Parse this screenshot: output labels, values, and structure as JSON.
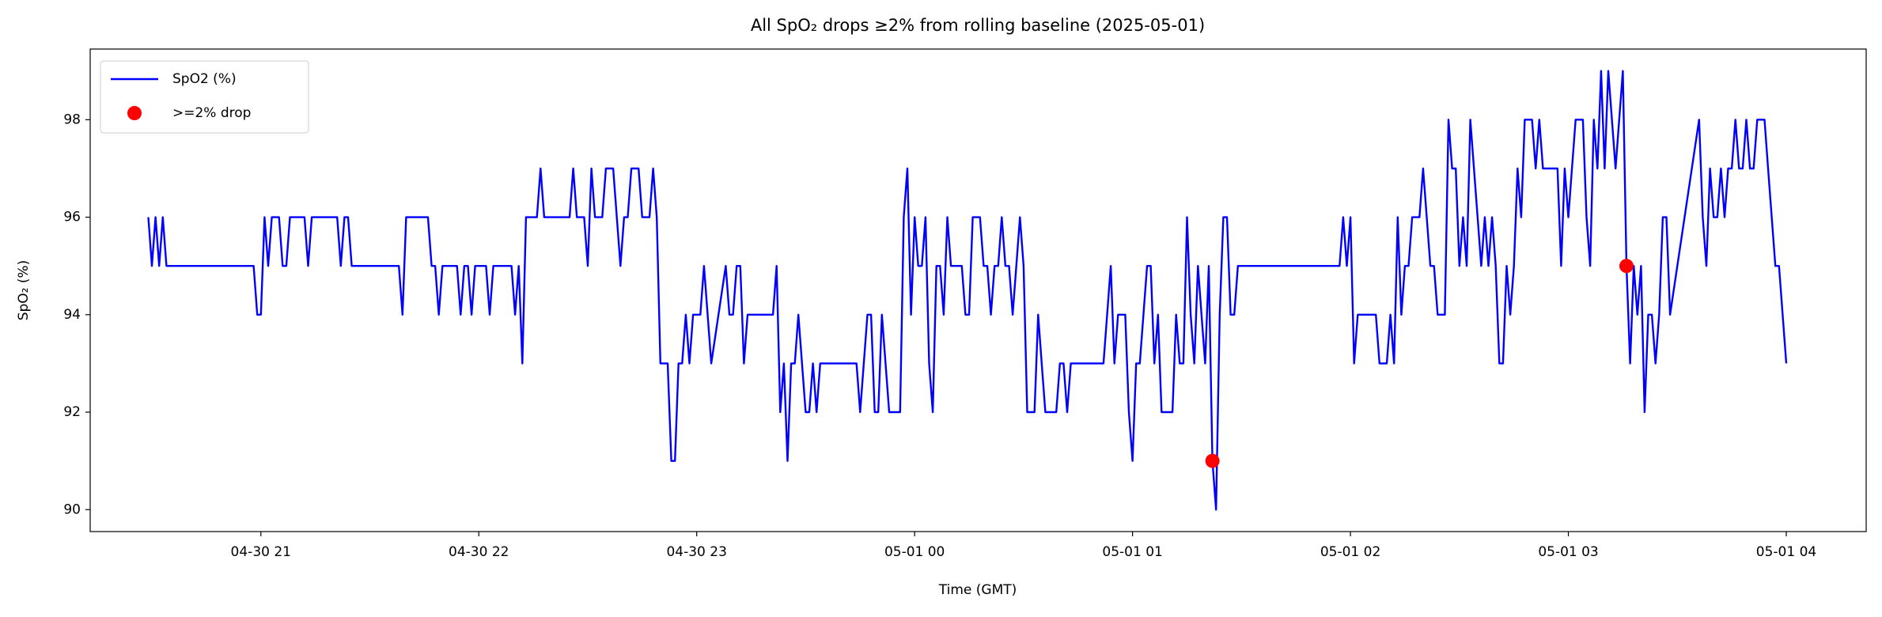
{
  "chart_data": {
    "type": "line",
    "title": "All SpO₂ drops ≥2% from rolling baseline (2025-05-01)",
    "x_label": "Time (GMT)",
    "y_label": "SpO₂ (%)",
    "xlim": [
      "04-30 20:13",
      "05-01 04:22"
    ],
    "xticks": [
      {
        "value": "04-30 21:00",
        "label": "04-30 21"
      },
      {
        "value": "04-30 22:00",
        "label": "04-30 22"
      },
      {
        "value": "04-30 23:00",
        "label": "04-30 23"
      },
      {
        "value": "05-01 00:00",
        "label": "05-01 00"
      },
      {
        "value": "05-01 01:00",
        "label": "05-01 01"
      },
      {
        "value": "05-01 02:00",
        "label": "05-01 02"
      },
      {
        "value": "05-01 03:00",
        "label": "05-01 03"
      },
      {
        "value": "05-01 04:00",
        "label": "05-01 04"
      }
    ],
    "ylim": [
      89.55,
      99.45
    ],
    "yticks": [
      90,
      92,
      94,
      96,
      98
    ],
    "grid": false,
    "legend": "upper left",
    "series": [
      {
        "name": "SpO2 (%)",
        "type": "line",
        "color": "#0000ff",
        "x": [
          "04-30 20:29",
          "04-30 20:30",
          "04-30 20:31",
          "04-30 20:32",
          "04-30 20:33",
          "04-30 20:34",
          "04-30 20:58",
          "04-30 20:59",
          "04-30 21:00",
          "04-30 21:01",
          "04-30 21:02",
          "04-30 21:03",
          "04-30 21:05",
          "04-30 21:06",
          "04-30 21:07",
          "04-30 21:08",
          "04-30 21:12",
          "04-30 21:13",
          "04-30 21:14",
          "04-30 21:21",
          "04-30 21:22",
          "04-30 21:23",
          "04-30 21:24",
          "04-30 21:25",
          "04-30 21:38",
          "04-30 21:39",
          "04-30 21:40",
          "04-30 21:46",
          "04-30 21:47",
          "04-30 21:48",
          "04-30 21:49",
          "04-30 21:50",
          "04-30 21:54",
          "04-30 21:55",
          "04-30 21:56",
          "04-30 21:57",
          "04-30 21:58",
          "04-30 21:59",
          "04-30 22:02",
          "04-30 22:03",
          "04-30 22:04",
          "04-30 22:09",
          "04-30 22:10",
          "04-30 22:11",
          "04-30 22:12",
          "04-30 22:13",
          "04-30 22:16",
          "04-30 22:17",
          "04-30 22:18",
          "04-30 22:25",
          "04-30 22:26",
          "04-30 22:27",
          "04-30 22:29",
          "04-30 22:30",
          "04-30 22:31",
          "04-30 22:32",
          "04-30 22:34",
          "04-30 22:35",
          "04-30 22:37",
          "04-30 22:38",
          "04-30 22:39",
          "04-30 22:40",
          "04-30 22:41",
          "04-30 22:42",
          "04-30 22:44",
          "04-30 22:45",
          "04-30 22:47",
          "04-30 22:48",
          "04-30 22:49",
          "04-30 22:50",
          "04-30 22:52",
          "04-30 22:53",
          "04-30 22:54",
          "04-30 22:55",
          "04-30 22:56",
          "04-30 22:57",
          "04-30 22:58",
          "04-30 22:59",
          "04-30 23:01",
          "04-30 23:02",
          "04-30 23:03",
          "04-30 23:04",
          "04-30 23:06",
          "04-30 23:08",
          "04-30 23:09",
          "04-30 23:10",
          "04-30 23:11",
          "04-30 23:12",
          "04-30 23:13",
          "04-30 23:14",
          "04-30 23:21",
          "04-30 23:22",
          "04-30 23:23",
          "04-30 23:24",
          "04-30 23:25",
          "04-30 23:26",
          "04-30 23:27",
          "04-30 23:28",
          "04-30 23:29",
          "04-30 23:30",
          "04-30 23:31",
          "04-30 23:32",
          "04-30 23:33",
          "04-30 23:34",
          "04-30 23:44",
          "04-30 23:45",
          "04-30 23:46",
          "04-30 23:47",
          "04-30 23:48",
          "04-30 23:49",
          "04-30 23:50",
          "04-30 23:51",
          "04-30 23:52",
          "04-30 23:53",
          "04-30 23:56",
          "04-30 23:57",
          "04-30 23:58",
          "04-30 23:59",
          "05-01 00:00",
          "05-01 00:01",
          "05-01 00:02",
          "05-01 00:03",
          "05-01 00:04",
          "05-01 00:05",
          "05-01 00:06",
          "05-01 00:07",
          "05-01 00:08",
          "05-01 00:09",
          "05-01 00:10",
          "05-01 00:13",
          "05-01 00:14",
          "05-01 00:15",
          "05-01 00:16",
          "05-01 00:18",
          "05-01 00:19",
          "05-01 00:20",
          "05-01 00:21",
          "05-01 00:22",
          "05-01 00:23",
          "05-01 00:24",
          "05-01 00:25",
          "05-01 00:26",
          "05-01 00:27",
          "05-01 00:28",
          "05-01 00:29",
          "05-01 00:30",
          "05-01 00:31",
          "05-01 00:33",
          "05-01 00:34",
          "05-01 00:35",
          "05-01 00:36",
          "05-01 00:39",
          "05-01 00:40",
          "05-01 00:41",
          "05-01 00:42",
          "05-01 00:43",
          "05-01 00:52",
          "05-01 00:53",
          "05-01 00:54",
          "05-01 00:55",
          "05-01 00:56",
          "05-01 00:58",
          "05-01 00:59",
          "05-01 01:00",
          "05-01 01:01",
          "05-01 01:02",
          "05-01 01:03",
          "05-01 01:04",
          "05-01 01:05",
          "05-01 01:06",
          "05-01 01:07",
          "05-01 01:08",
          "05-01 01:11",
          "05-01 01:12",
          "05-01 01:13",
          "05-01 01:14",
          "05-01 01:15",
          "05-01 01:16",
          "05-01 01:17",
          "05-01 01:18",
          "05-01 01:19",
          "05-01 01:20",
          "05-01 01:21",
          "05-01 01:22",
          "05-01 01:23",
          "05-01 01:24",
          "05-01 01:25",
          "05-01 01:26",
          "05-01 01:27",
          "05-01 01:28",
          "05-01 01:29",
          "05-01 01:57",
          "05-01 01:58",
          "05-01 01:59",
          "05-01 02:00",
          "05-01 02:01",
          "05-01 02:02",
          "05-01 02:07",
          "05-01 02:08",
          "05-01 02:10",
          "05-01 02:11",
          "05-01 02:12",
          "05-01 02:13",
          "05-01 02:14",
          "05-01 02:15",
          "05-01 02:16",
          "05-01 02:17",
          "05-01 02:19",
          "05-01 02:20",
          "05-01 02:21",
          "05-01 02:22",
          "05-01 02:23",
          "05-01 02:24",
          "05-01 02:26",
          "05-01 02:27",
          "05-01 02:28",
          "05-01 02:29",
          "05-01 02:30",
          "05-01 02:31",
          "05-01 02:32",
          "05-01 02:33",
          "05-01 02:34",
          "05-01 02:36",
          "05-01 02:37",
          "05-01 02:38",
          "05-01 02:39",
          "05-01 02:40",
          "05-01 02:41",
          "05-01 02:42",
          "05-01 02:43",
          "05-01 02:44",
          "05-01 02:45",
          "05-01 02:46",
          "05-01 02:47",
          "05-01 02:48",
          "05-01 02:50",
          "05-01 02:51",
          "05-01 02:52",
          "05-01 02:53",
          "05-01 02:57",
          "05-01 02:58",
          "05-01 02:59",
          "05-01 03:00",
          "05-01 03:02",
          "05-01 03:04",
          "05-01 03:05",
          "05-01 03:06",
          "05-01 03:07",
          "05-01 03:08",
          "05-01 03:09",
          "05-01 03:10",
          "05-01 03:11",
          "05-01 03:12",
          "05-01 03:13",
          "05-01 03:15",
          "05-01 03:16",
          "05-01 03:17",
          "05-01 03:18",
          "05-01 03:19",
          "05-01 03:20",
          "05-01 03:21",
          "05-01 03:22",
          "05-01 03:23",
          "05-01 03:24",
          "05-01 03:25",
          "05-01 03:26",
          "05-01 03:27",
          "05-01 03:28",
          "05-01 03:36",
          "05-01 03:37",
          "05-01 03:38",
          "05-01 03:39",
          "05-01 03:40",
          "05-01 03:41",
          "05-01 03:42",
          "05-01 03:43",
          "05-01 03:44",
          "05-01 03:45",
          "05-01 03:46",
          "05-01 03:47",
          "05-01 03:48",
          "05-01 03:49",
          "05-01 03:50",
          "05-01 03:51",
          "05-01 03:52",
          "05-01 03:54",
          "05-01 03:55",
          "05-01 03:57",
          "05-01 03:58",
          "05-01 04:00"
        ],
        "values": [
          96,
          95,
          96,
          95,
          96,
          95,
          95,
          94,
          94,
          96,
          95,
          96,
          96,
          95,
          95,
          96,
          96,
          95,
          96,
          96,
          95,
          96,
          96,
          95,
          95,
          94,
          96,
          96,
          95,
          95,
          94,
          95,
          95,
          94,
          95,
          95,
          94,
          95,
          95,
          94,
          95,
          95,
          94,
          95,
          93,
          96,
          96,
          97,
          96,
          96,
          97,
          96,
          96,
          95,
          97,
          96,
          96,
          97,
          97,
          96,
          95,
          96,
          96,
          97,
          97,
          96,
          96,
          97,
          96,
          93,
          93,
          91,
          91,
          93,
          93,
          94,
          93,
          94,
          94,
          95,
          94,
          93,
          94,
          95,
          94,
          94,
          95,
          95,
          93,
          94,
          94,
          95,
          92,
          93,
          91,
          93,
          93,
          94,
          93,
          92,
          92,
          93,
          92,
          93,
          93,
          92,
          93,
          94,
          94,
          92,
          92,
          94,
          93,
          92,
          92,
          96,
          97,
          94,
          96,
          95,
          95,
          96,
          93,
          92,
          95,
          95,
          94,
          96,
          95,
          95,
          94,
          94,
          96,
          96,
          95,
          95,
          94,
          95,
          95,
          96,
          95,
          95,
          94,
          95,
          96,
          95,
          92,
          92,
          94,
          93,
          92,
          92,
          93,
          93,
          92,
          93,
          93,
          94,
          95,
          93,
          94,
          94,
          92,
          91,
          93,
          93,
          94,
          95,
          95,
          93,
          94,
          92,
          92,
          94,
          93,
          93,
          96,
          94,
          93,
          95,
          94,
          93,
          95,
          91,
          90,
          94,
          96,
          96,
          94,
          94,
          95,
          95,
          96,
          95,
          96,
          93,
          94,
          94,
          93,
          93,
          94,
          93,
          96,
          94,
          95,
          95,
          96,
          96,
          97,
          96,
          95,
          95,
          94,
          94,
          98,
          97,
          97,
          95,
          96,
          95,
          98,
          97,
          95,
          96,
          95,
          96,
          95,
          93,
          93,
          95,
          94,
          95,
          97,
          96,
          98,
          98,
          97,
          98,
          97,
          97,
          95,
          97,
          96,
          98,
          98,
          96,
          95,
          98,
          97,
          99,
          97,
          99,
          98,
          97,
          99,
          95,
          93,
          95,
          94,
          95,
          92,
          94,
          94,
          93,
          94,
          96,
          96,
          94,
          98,
          96,
          95,
          97,
          96,
          96,
          97,
          96,
          97,
          97,
          98,
          97,
          97,
          98,
          97,
          97,
          98,
          98,
          97,
          95,
          95,
          93
        ]
      },
      {
        "name": ">=2% drop",
        "type": "scatter",
        "color": "#ff0000",
        "x": [
          "05-01 01:22",
          "05-01 03:16"
        ],
        "values": [
          91,
          95
        ]
      }
    ]
  }
}
